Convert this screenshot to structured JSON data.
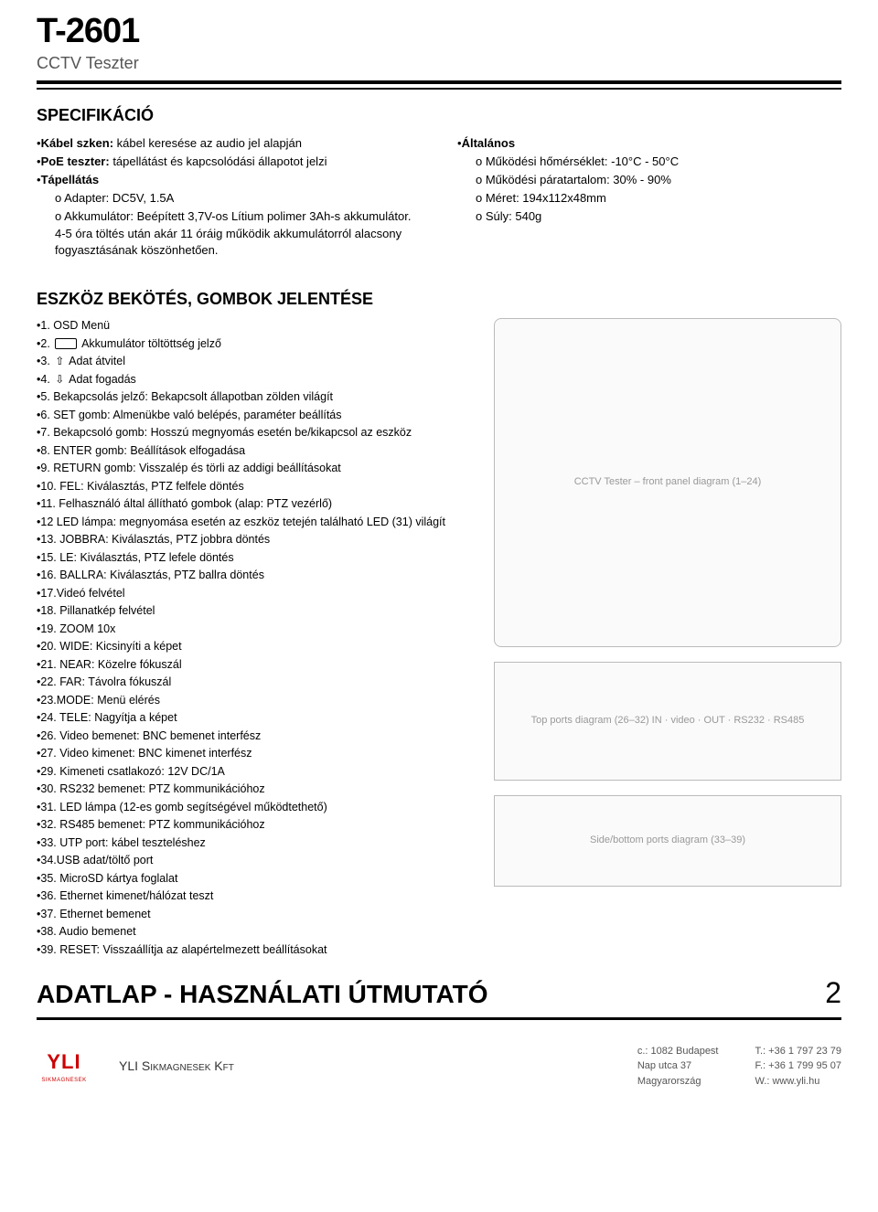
{
  "header": {
    "model": "T-2601",
    "subtitle": "CCTV Teszter"
  },
  "spec": {
    "title": "SPECIFIKÁCIÓ",
    "left": {
      "cable_label": "Kábel szken:",
      "cable_text": " kábel keresése az audio jel alapján",
      "poe_label": "PoE teszter:",
      "poe_text": " tápellátást és kapcsolódási állapotot jelzi",
      "power_label": "Tápellátás",
      "adapter": "o Adapter: DC5V, 1.5A",
      "battery": "o Akkumulátor: Beépített 3,7V-os Lítium polimer 3Ah-s akkumulátor. 4-5 óra töltés után akár 11 óráig működik akkumulátorról alacsony fogyasztásának köszönhetően."
    },
    "right": {
      "general_label": "Általános",
      "temp": "o Működési hőmérséklet: -10°C - 50°C",
      "humidity": "o Működési páratartalom: 30% - 90%",
      "size": "o Méret: 194x112x48mm",
      "weight": "o Súly: 540g"
    }
  },
  "buttons": {
    "title": "ESZKÖZ BEKÖTÉS, GOMBOK JELENTÉSE",
    "items": [
      "•1. OSD Menü",
      "•2. [battery-icon] Akkumulátor töltöttség jelző",
      "•3. [tx-icon] Adat átvitel",
      "•4. [rx-icon] Adat fogadás",
      "•5. Bekapcsolás jelző: Bekapcsolt állapotban zölden világít",
      "•6. SET gomb: Almenükbe való belépés, paraméter beállítás",
      "•7. Bekapcsoló gomb: Hosszú megnyomás esetén be/kikapcsol az eszköz",
      "•8. ENTER gomb: Beállítások elfogadása",
      "•9. RETURN gomb: Visszalép és törli az addigi beállításokat",
      "•10. FEL: Kiválasztás, PTZ felfele döntés",
      "•11. Felhasználó által állítható gombok (alap: PTZ vezérlő)",
      "•12 LED lámpa: megnyomása esetén az eszköz tetején található LED (31) világít",
      "•13. JOBBRA: Kiválasztás, PTZ jobbra döntés",
      "•15. LE: Kiválasztás, PTZ lefele döntés",
      "•16. BALLRA: Kiválasztás, PTZ ballra döntés",
      "•17.Videó felvétel",
      "•18. Pillanatkép felvétel",
      "•19. ZOOM 10x",
      "•20. WIDE: Kicsinyíti a képet",
      "•21. NEAR: Közelre fókuszál",
      "•22. FAR: Távolra fókuszál",
      "•23.MODE: Menü elérés",
      "•24. TELE: Nagyítja a képet",
      "•26. Video bemenet: BNC bemenet interfész",
      "•27. Video kimenet: BNC kimenet interfész",
      "•29. Kimeneti csatlakozó: 12V DC/1A",
      "•30. RS232 bemenet: PTZ kommunikációhoz",
      "•31. LED lámpa (12-es gomb segítségével működtethető)",
      "•32. RS485 bemenet: PTZ kommunikációhoz",
      "•33. UTP port: kábel teszteléshez",
      "•34.USB adat/töltő port",
      "•35. MicroSD kártya foglalat",
      "•36. Ethernet kimenet/hálózat teszt",
      "•37. Ethernet bemenet",
      "•38. Audio bemenet",
      "•39. RESET: Visszaállítja az alapértelmezett beállításokat"
    ]
  },
  "diagrams": {
    "front_label": "CCTV Tester – front panel diagram (1–24)",
    "ports_label": "Top ports diagram (26–32) IN · video · OUT · RS232 · RS485",
    "bottom_label": "Side/bottom ports diagram (33–39)"
  },
  "footer": {
    "title": "ADATLAP - HASZNÁLATI ÚTMUTATÓ",
    "page": "2",
    "logo_text": "YLI",
    "logo_sub": "SIKMAGNESEK",
    "company": "YLI Sikmagnesek Kft",
    "addr1": "c.: 1082 Budapest",
    "addr2": "Nap utca 37",
    "addr3": "Magyarország",
    "tel": "T.: +36 1 797 23 79",
    "fax": "F.: +36 1 799 95 07",
    "web": "W.: www.yli.hu"
  }
}
